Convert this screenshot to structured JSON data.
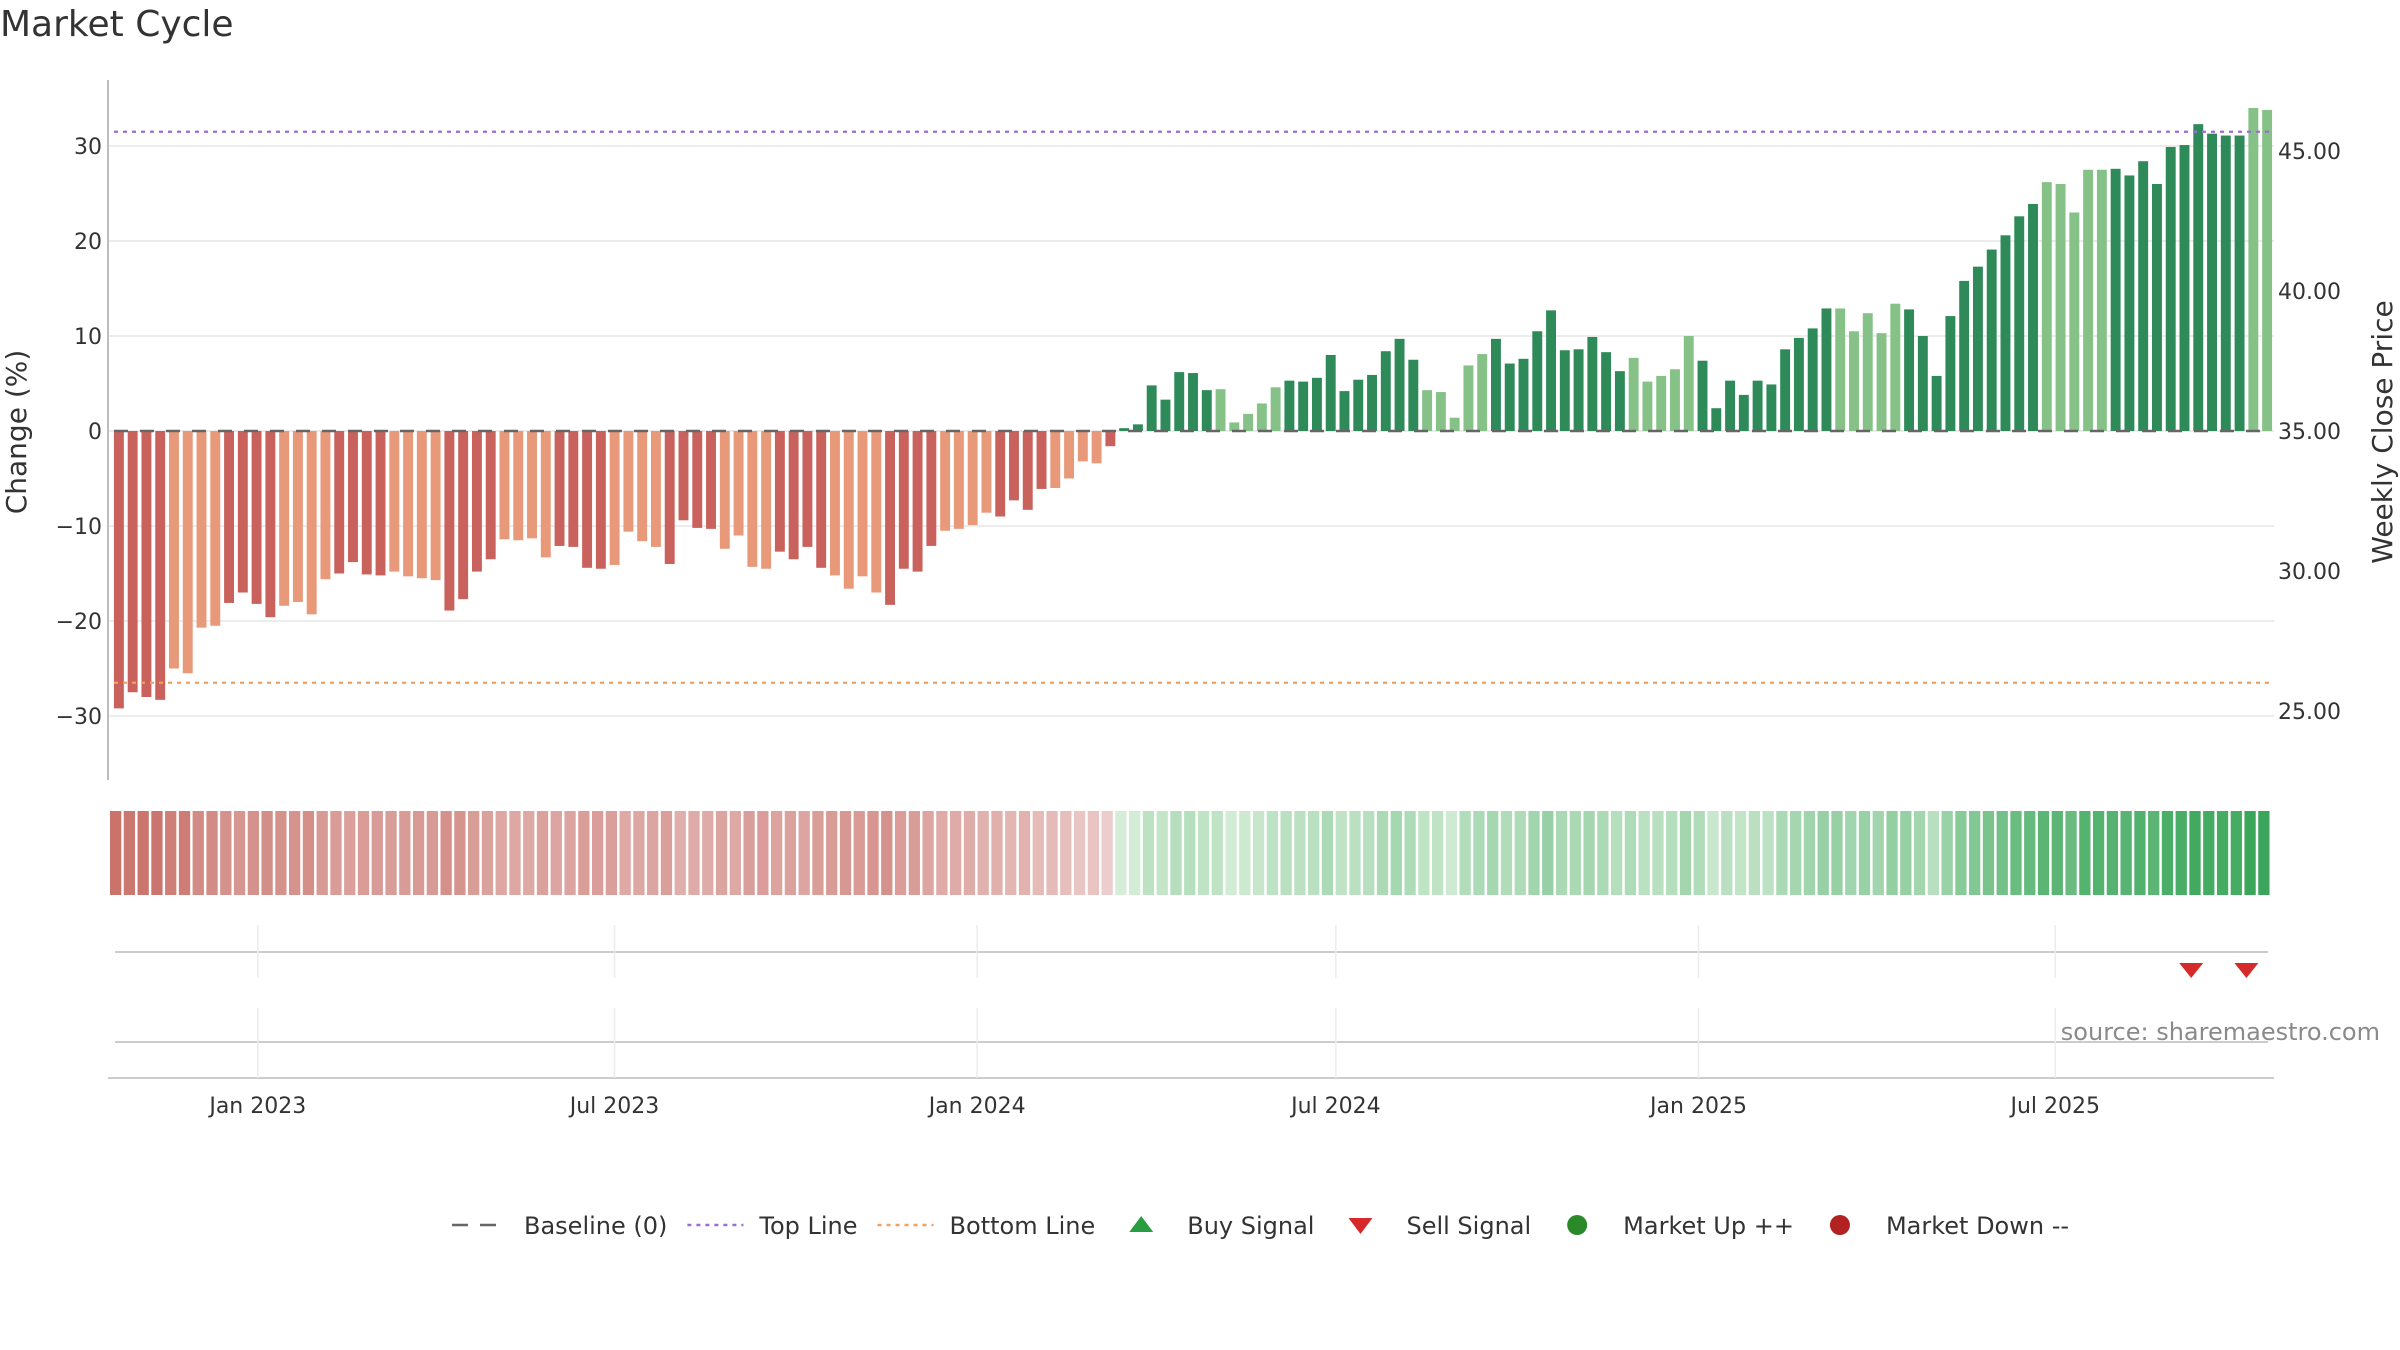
{
  "page": {
    "title": "Market Cycle"
  },
  "chart_data": {
    "type": "bar",
    "title": "Market Cycle",
    "ylabel_left": "Change (%)",
    "ylabel_right": "Weekly Close Price",
    "ylim": [
      -37,
      37
    ],
    "ylim_right": [
      23.0,
      49.0
    ],
    "yticks_left": [
      30,
      20,
      10,
      0,
      -10,
      -20,
      -30
    ],
    "yticks_left_labels": [
      "30",
      "20",
      "10",
      "0",
      "−10",
      "−20",
      "−30"
    ],
    "yticks_right": [
      45,
      40,
      35,
      30,
      25
    ],
    "yticks_right_labels": [
      "45.00",
      "40.00",
      "35.00",
      "30.00",
      "25.00"
    ],
    "x_start": "2022-10-17",
    "x_end": "2025-10-20",
    "xticks": [
      {
        "date": "2023-01-01",
        "label": "Jan 2023"
      },
      {
        "date": "2023-07-01",
        "label": "Jul 2023"
      },
      {
        "date": "2024-01-01",
        "label": "Jan 2024"
      },
      {
        "date": "2024-07-01",
        "label": "Jul 2024"
      },
      {
        "date": "2025-01-01",
        "label": "Jan 2025"
      },
      {
        "date": "2025-07-01",
        "label": "Jul 2025"
      }
    ],
    "top_line": 31.5,
    "bottom_line": -26.5,
    "baseline": 0,
    "bar_values": [
      -29.2,
      -27.5,
      -28,
      -28.3,
      -25,
      -25.5,
      -20.7,
      -20.5,
      -18.1,
      -17,
      -18.2,
      -19.6,
      -18.4,
      -18,
      -19.3,
      -15.6,
      -15,
      -13.8,
      -15.1,
      -15.2,
      -14.8,
      -15.3,
      -15.5,
      -15.7,
      -18.9,
      -17.7,
      -14.8,
      -13.5,
      -11.4,
      -11.5,
      -11.3,
      -13.3,
      -12.1,
      -12.2,
      -14.4,
      -14.5,
      -14.1,
      -10.6,
      -11.6,
      -12.2,
      -14,
      -9.4,
      -10.2,
      -10.3,
      -12.4,
      -11,
      -14.3,
      -14.5,
      -12.7,
      -13.5,
      -12.2,
      -14.4,
      -15.2,
      -16.6,
      -15.3,
      -17,
      -18.3,
      -14.5,
      -14.8,
      -12.1,
      -10.5,
      -10.3,
      -9.9,
      -8.6,
      -9,
      -7.3,
      -8.3,
      -6.1,
      -6,
      -5,
      -3.2,
      -3.4,
      -1.6,
      0.3,
      0.7,
      4.8,
      3.3,
      6.2,
      6.1,
      4.3,
      4.4,
      0.9,
      1.8,
      2.9,
      4.6,
      5.3,
      5.2,
      5.6,
      8,
      4.2,
      5.4,
      5.9,
      8.4,
      9.7,
      7.5,
      4.3,
      4.1,
      1.4,
      6.9,
      8.1,
      9.7,
      7.1,
      7.6,
      10.5,
      12.7,
      8.5,
      8.6,
      9.9,
      8.3,
      6.3,
      7.7,
      5.2,
      5.8,
      6.5,
      10,
      7.4,
      2.4,
      5.3,
      3.8,
      5.3,
      4.9,
      8.6,
      9.8,
      10.8,
      12.9,
      12.9,
      10.5,
      12.4,
      10.3,
      13.4,
      12.8,
      10,
      5.8,
      12.1,
      15.8,
      17.3,
      19.1,
      20.6,
      22.6,
      23.9,
      26.2,
      26,
      23,
      27.5,
      27.5,
      27.6,
      26.9,
      28.4,
      26,
      29.9,
      30.1,
      32.3,
      31.3,
      31.1,
      31.1,
      34,
      33.8
    ],
    "heat_strip": {
      "negative_color": "#c9736b",
      "positive_color": "#3aa65a"
    },
    "sell_signals": [
      "2025-09-08",
      "2025-10-06"
    ],
    "buy_signals": [],
    "market_up_markers": [],
    "market_down_markers": [],
    "legend": [
      {
        "label": "Baseline (0)",
        "symbol": "dash",
        "color": "#666666"
      },
      {
        "label": "Top Line",
        "symbol": "dot",
        "color": "#9b6fd0"
      },
      {
        "label": "Bottom Line",
        "symbol": "dot",
        "color": "#f0a060"
      },
      {
        "label": "Buy Signal",
        "symbol": "triangle-up",
        "color": "#2a9d43"
      },
      {
        "label": "Sell Signal",
        "symbol": "triangle-down",
        "color": "#d62a2a"
      },
      {
        "label": "Market Up ++",
        "symbol": "circle",
        "color": "#2a8a2a"
      },
      {
        "label": "Market Down --",
        "symbol": "circle",
        "color": "#b22222"
      }
    ],
    "legend_position": "bottom",
    "grid": true,
    "colors": {
      "neg_dark": "#c9625d",
      "neg_light": "#e8997a",
      "pos_dark": "#2f8a59",
      "pos_light": "#86c287",
      "top_line": "#9b6fd0",
      "bottom_line": "#f0a060",
      "baseline": "#666666"
    },
    "source": "source: sharemaestro.com"
  }
}
